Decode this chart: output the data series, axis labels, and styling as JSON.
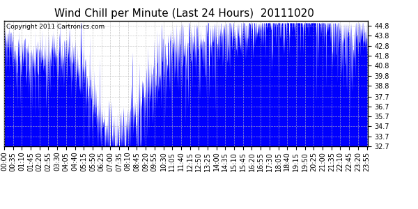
{
  "title": "Wind Chill per Minute (Last 24 Hours)  20111020",
  "copyright_text": "Copyright 2011 Cartronics.com",
  "ylim": [
    32.7,
    45.3
  ],
  "yticks": [
    32.7,
    33.7,
    34.7,
    35.7,
    36.7,
    37.7,
    38.8,
    39.8,
    40.8,
    41.8,
    42.8,
    43.8,
    44.8
  ],
  "line_color": "#0000FF",
  "fill_color": "#0000FF",
  "background_color": "#FFFFFF",
  "grid_color": "#BBBBBB",
  "title_fontsize": 11,
  "tick_label_fontsize": 7,
  "num_minutes": 1440,
  "x_tick_interval": 35,
  "x_tick_labels": [
    "00:00",
    "00:35",
    "01:10",
    "01:45",
    "02:20",
    "02:55",
    "03:30",
    "04:05",
    "04:40",
    "05:15",
    "05:50",
    "06:25",
    "07:00",
    "07:35",
    "08:10",
    "08:45",
    "09:20",
    "09:55",
    "10:30",
    "11:05",
    "11:40",
    "12:15",
    "12:50",
    "13:25",
    "14:00",
    "14:35",
    "15:10",
    "15:45",
    "16:20",
    "16:55",
    "17:30",
    "18:05",
    "18:40",
    "19:15",
    "19:50",
    "20:25",
    "21:00",
    "21:35",
    "22:10",
    "22:45",
    "23:20",
    "23:55"
  ]
}
